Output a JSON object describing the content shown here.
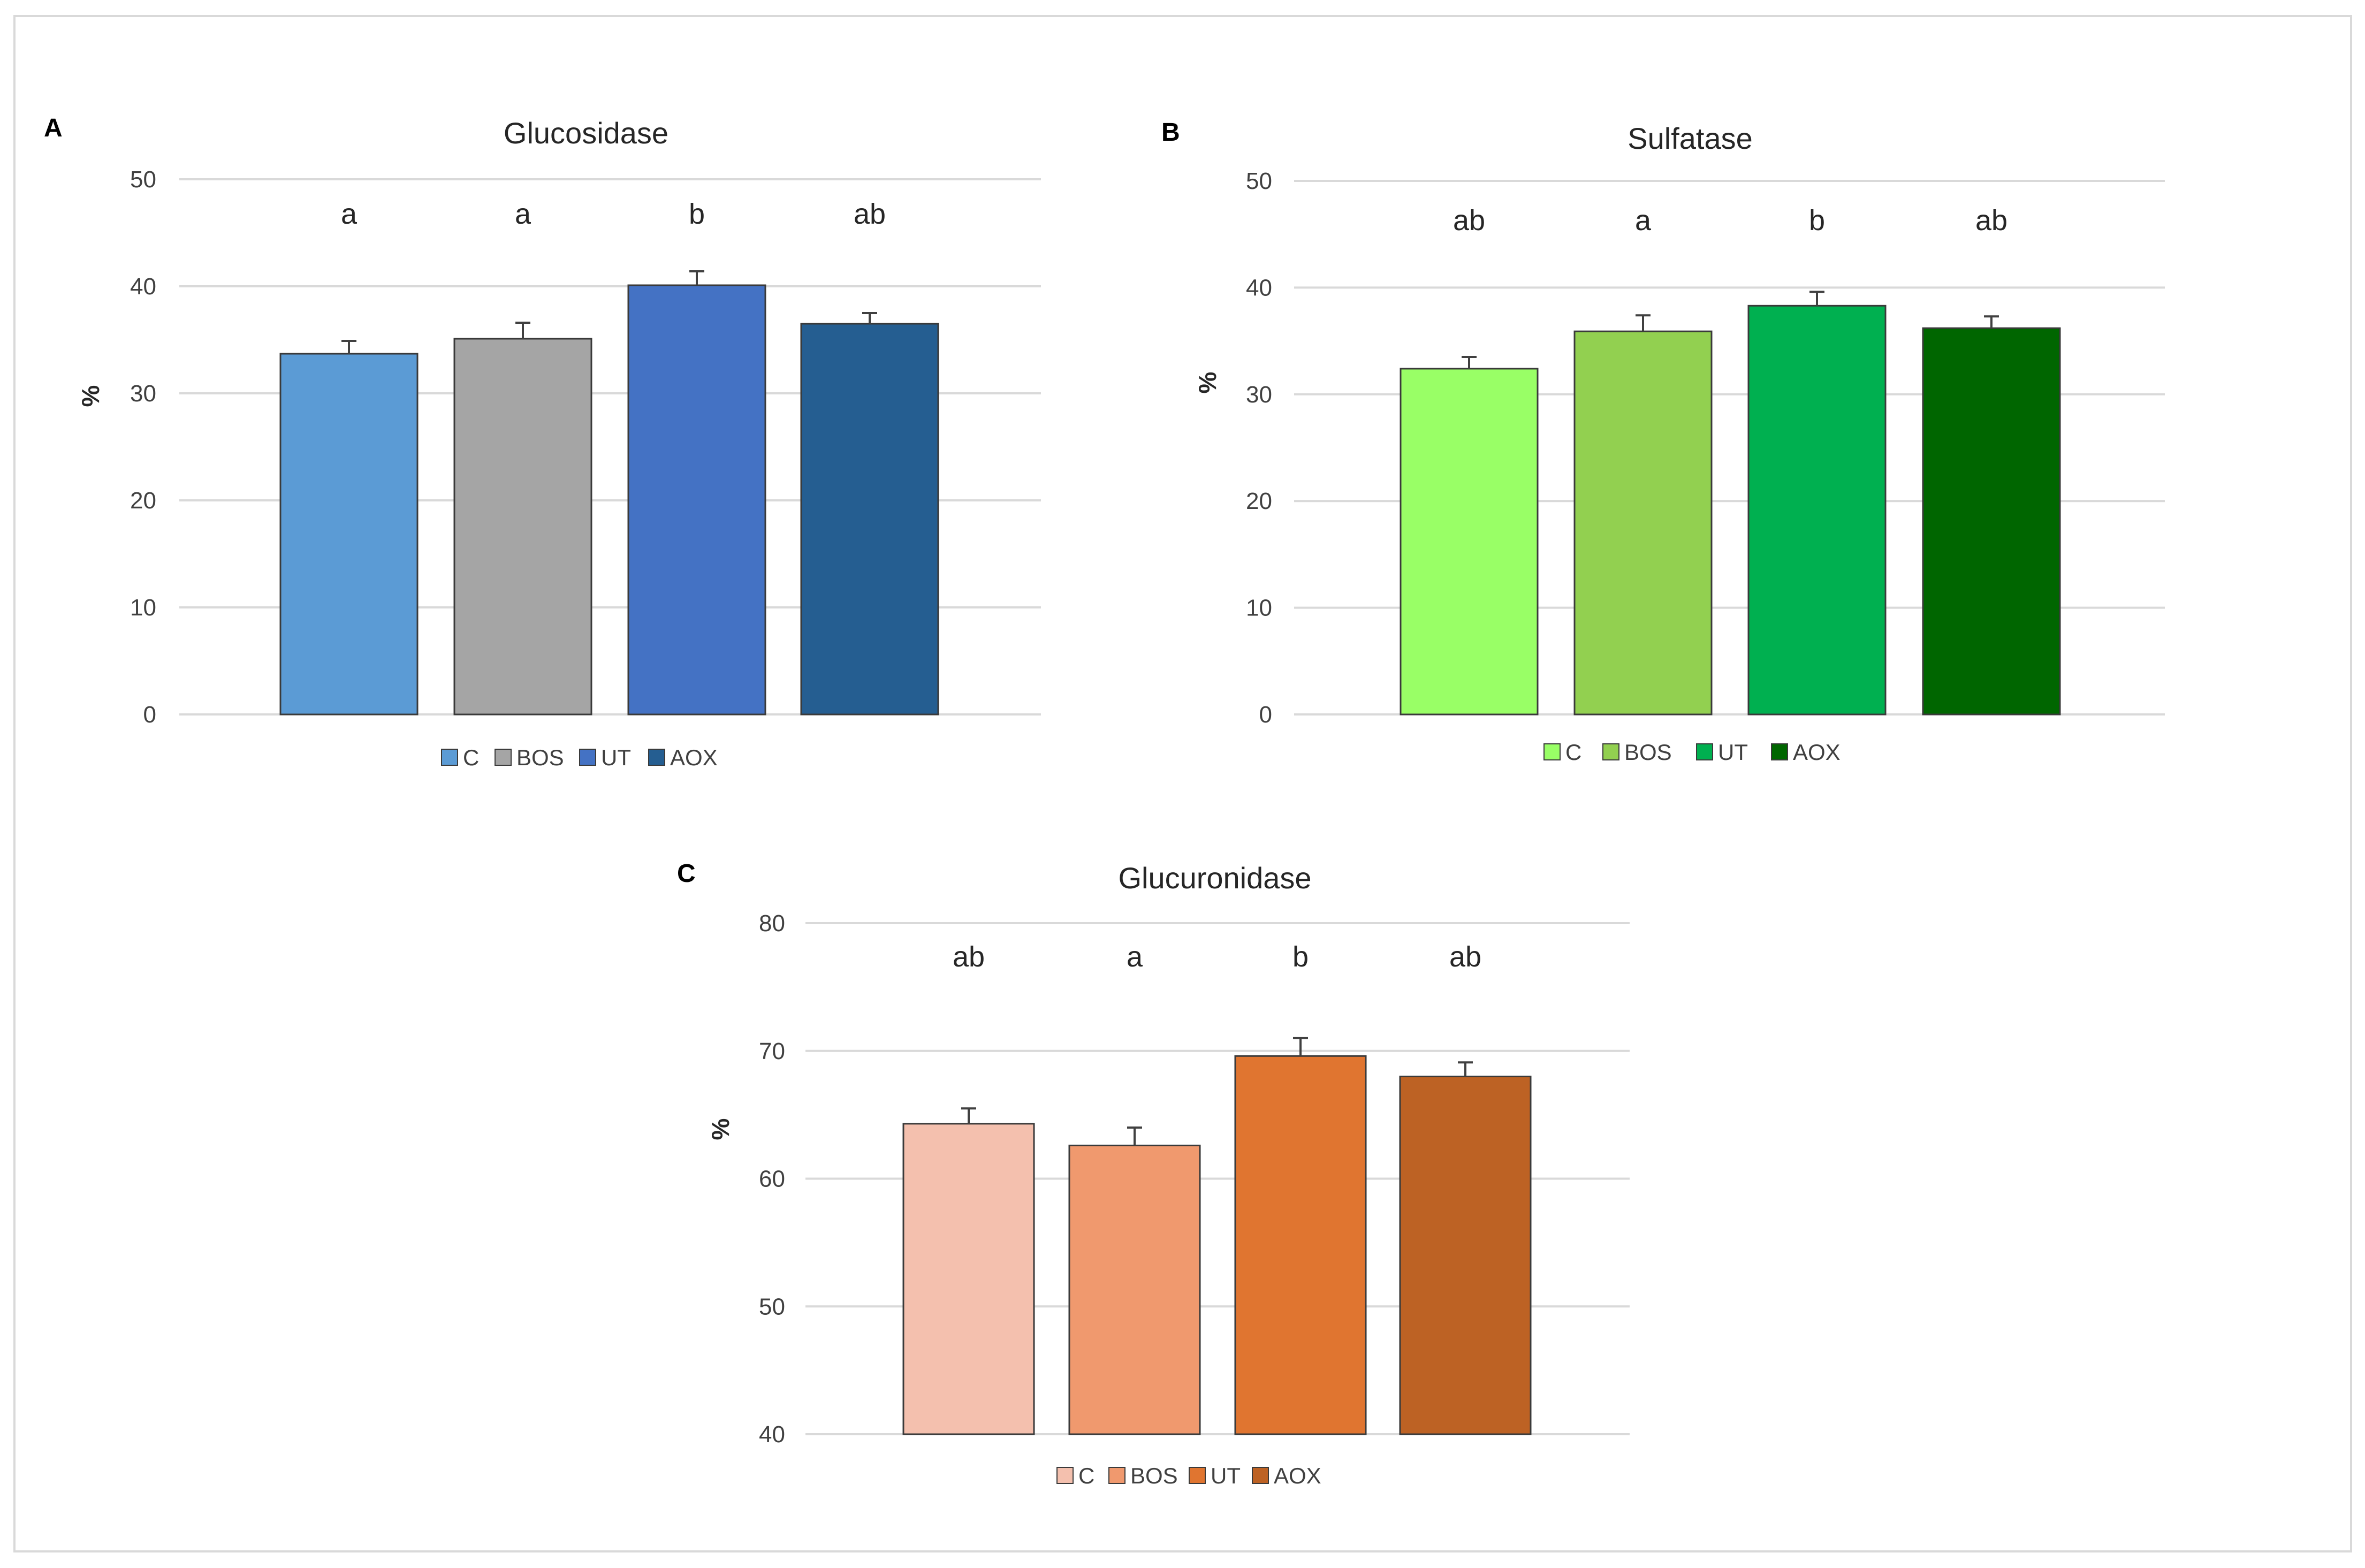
{
  "chart_data": [
    {
      "panel": "A",
      "type": "bar",
      "title": "Glucosidase",
      "ylabel": "%",
      "xlabel": "",
      "ylim": [
        0,
        50
      ],
      "yticks": [
        0,
        10,
        20,
        30,
        40,
        50
      ],
      "grid": true,
      "legend_position": "bottom",
      "categories": [
        "C",
        "BOS",
        "UT",
        "AOX"
      ],
      "values": [
        33.7,
        35.1,
        40.1,
        36.5
      ],
      "errors": [
        1.2,
        1.5,
        1.3,
        1.0
      ],
      "letters": [
        "a",
        "a",
        "b",
        "ab"
      ],
      "colors": [
        "#5b9bd5",
        "#a5a5a5",
        "#4472c4",
        "#255e91"
      ]
    },
    {
      "panel": "B",
      "type": "bar",
      "title": "Sulfatase",
      "ylabel": "%",
      "xlabel": "",
      "ylim": [
        0,
        50
      ],
      "yticks": [
        0,
        10,
        20,
        30,
        40,
        50
      ],
      "grid": true,
      "legend_position": "bottom",
      "categories": [
        "C",
        "BOS",
        "UT",
        "AOX"
      ],
      "values": [
        32.4,
        35.9,
        38.3,
        36.2
      ],
      "errors": [
        1.1,
        1.5,
        1.3,
        1.1
      ],
      "letters": [
        "ab",
        "a",
        "b",
        "ab"
      ],
      "colors": [
        "#99ff66",
        "#92d050",
        "#00b050",
        "#006600"
      ]
    },
    {
      "panel": "C",
      "type": "bar",
      "title": "Glucuronidase",
      "ylabel": "%",
      "xlabel": "",
      "ylim": [
        40,
        80
      ],
      "yticks": [
        40,
        50,
        60,
        70,
        80
      ],
      "grid": true,
      "legend_position": "bottom",
      "categories": [
        "C",
        "BOS",
        "UT",
        "AOX"
      ],
      "values": [
        64.3,
        62.6,
        69.6,
        68.0
      ],
      "errors": [
        1.2,
        1.4,
        1.4,
        1.1
      ],
      "letters": [
        "ab",
        "a",
        "b",
        "ab"
      ],
      "colors": [
        "#f4c0ae",
        "#f0996e",
        "#e07530",
        "#bd6224"
      ]
    }
  ]
}
